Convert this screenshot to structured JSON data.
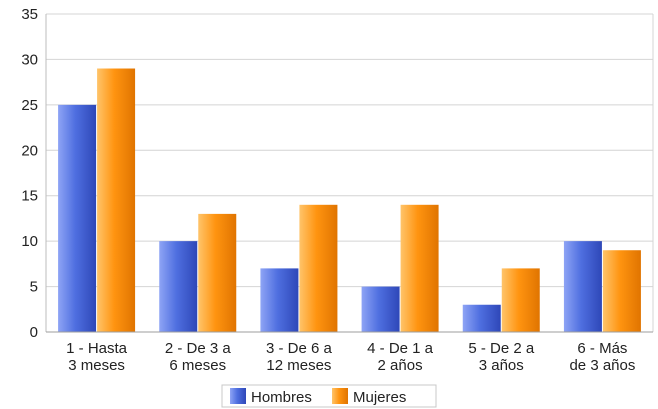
{
  "chart_data": {
    "type": "bar",
    "title": "",
    "xlabel": "",
    "ylabel": "",
    "ylim": [
      0,
      35
    ],
    "yticks": [
      0,
      5,
      10,
      15,
      20,
      25,
      30,
      35
    ],
    "grid": true,
    "legend_position": "bottom",
    "categories": [
      [
        "1 - Hasta",
        "3 meses"
      ],
      [
        "2 - De 3 a",
        "6 meses"
      ],
      [
        "3 - De 6 a",
        "12 meses"
      ],
      [
        "4 - De 1 a",
        "2 años"
      ],
      [
        "5 - De 2 a",
        "3 años"
      ],
      [
        "6 - Más",
        "de 3 años"
      ]
    ],
    "series": [
      {
        "name": "Hombres",
        "color": "#4f6fe0",
        "values": [
          25,
          10,
          7,
          5,
          3,
          10
        ]
      },
      {
        "name": "Mujeres",
        "color": "#ff9410",
        "values": [
          29,
          13,
          14,
          14,
          7,
          9
        ]
      }
    ]
  }
}
